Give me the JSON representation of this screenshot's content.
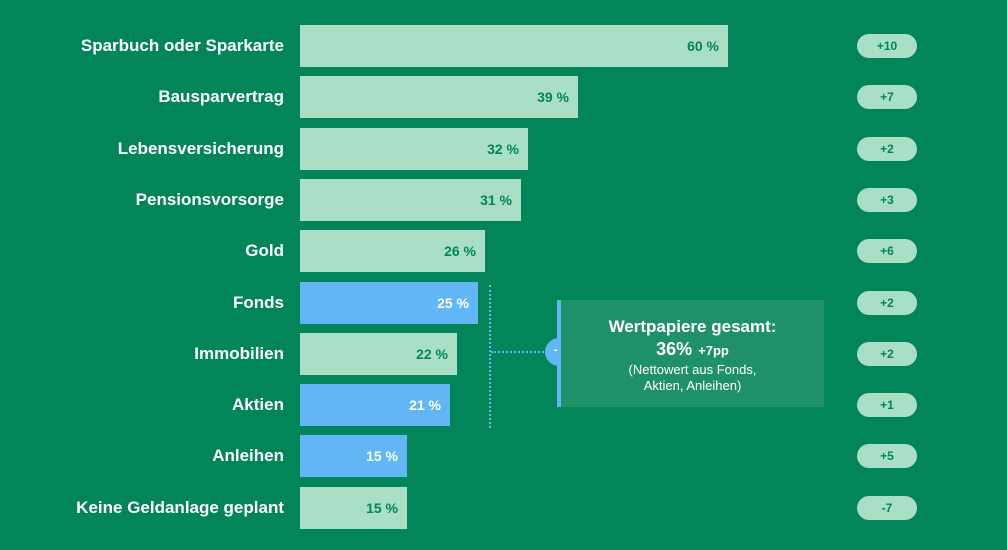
{
  "chart_data": {
    "type": "bar",
    "orientation": "horizontal",
    "categories": [
      "Sparbuch oder Sparkarte",
      "Bausparvertrag",
      "Lebensversicherung",
      "Pensionsvorsorge",
      "Gold",
      "Fonds",
      "Immobilien",
      "Aktien",
      "Anleihen",
      "Keine Geldanlage geplant"
    ],
    "values": [
      60,
      39,
      32,
      31,
      26,
      25,
      22,
      21,
      15,
      15
    ],
    "value_labels": [
      "60 %",
      "39 %",
      "32 %",
      "31 %",
      "26 %",
      "25 %",
      "22 %",
      "21 %",
      "15 %",
      "15 %"
    ],
    "changes": [
      "+10",
      "+7",
      "+2",
      "+3",
      "+6",
      "+2",
      "+2",
      "+1",
      "+5",
      "-7"
    ],
    "highlighted": [
      false,
      false,
      false,
      false,
      false,
      true,
      false,
      true,
      true,
      false
    ],
    "xlim": [
      0,
      100
    ],
    "grid": false,
    "colors": {
      "background": "#028558",
      "bar_default": "#a8dfc6",
      "bar_highlight": "#62b6f5",
      "value_text_default": "#028558",
      "value_text_highlight": "#ffffff",
      "pill_bg": "#a8dfc6",
      "pill_text": "#028558",
      "callout_bg": "#1e9168",
      "callout_accent": "#62b6f5"
    }
  },
  "callout": {
    "title": "Wertpapiere gesamt:",
    "value": "36%",
    "delta": "+7pp",
    "note_line1": "(Nettowert aus Fonds,",
    "note_line2": "Aktien, Anleihen)",
    "plus_symbol": "+"
  }
}
